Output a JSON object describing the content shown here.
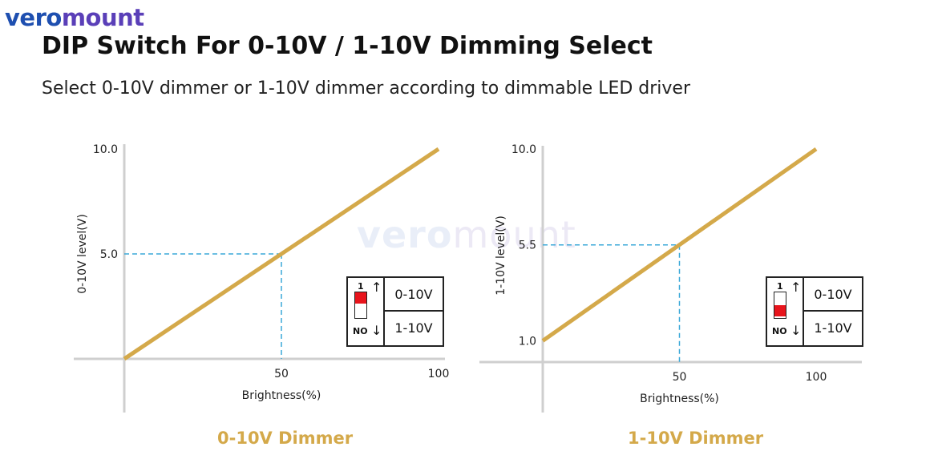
{
  "logo": {
    "part1": "vero",
    "part2": "mount"
  },
  "title": "DIP Switch For 0-10V / 1-10V  Dimming Select",
  "subtitle": "Select 0-10V dimmer or 1-10V dimmer according to dimmable LED driver",
  "watermark": {
    "part1": "vero",
    "part2": "mount"
  },
  "colors": {
    "line": "#d4a94a",
    "dash": "#3aa8d8",
    "axis": "#cfcfcf",
    "caption": "#d4a94a",
    "switch_red": "#e8141c"
  },
  "chart_data": [
    {
      "type": "line",
      "title": "",
      "caption": "0-10V Dimmer",
      "xlabel": "Brightness(%)",
      "ylabel": "0-10V level(V)",
      "xlim": [
        0,
        100
      ],
      "ylim": [
        0,
        10
      ],
      "x_ticks": [
        "50",
        "100"
      ],
      "y_ticks": [
        "5.0",
        "10.0"
      ],
      "x": [
        0,
        100
      ],
      "y": [
        0,
        10
      ],
      "reference": {
        "x": 50,
        "y": 5.0
      },
      "dip": {
        "label_top": "1",
        "label_bottom": "NO",
        "option_top": "0-10V",
        "option_bottom": "1-10V",
        "position": "up"
      }
    },
    {
      "type": "line",
      "title": "",
      "caption": "1-10V Dimmer",
      "xlabel": "Brightness(%)",
      "ylabel": "1-10V level(V)",
      "xlim": [
        0,
        100
      ],
      "ylim": [
        0,
        10
      ],
      "x_ticks": [
        "50",
        "100"
      ],
      "y_ticks": [
        "1.0",
        "5.5",
        "10.0"
      ],
      "x": [
        0,
        100
      ],
      "y": [
        1,
        10
      ],
      "reference": {
        "x": 50,
        "y": 5.5
      },
      "dip": {
        "label_top": "1",
        "label_bottom": "NO",
        "option_top": "0-10V",
        "option_bottom": "1-10V",
        "position": "down"
      }
    }
  ]
}
